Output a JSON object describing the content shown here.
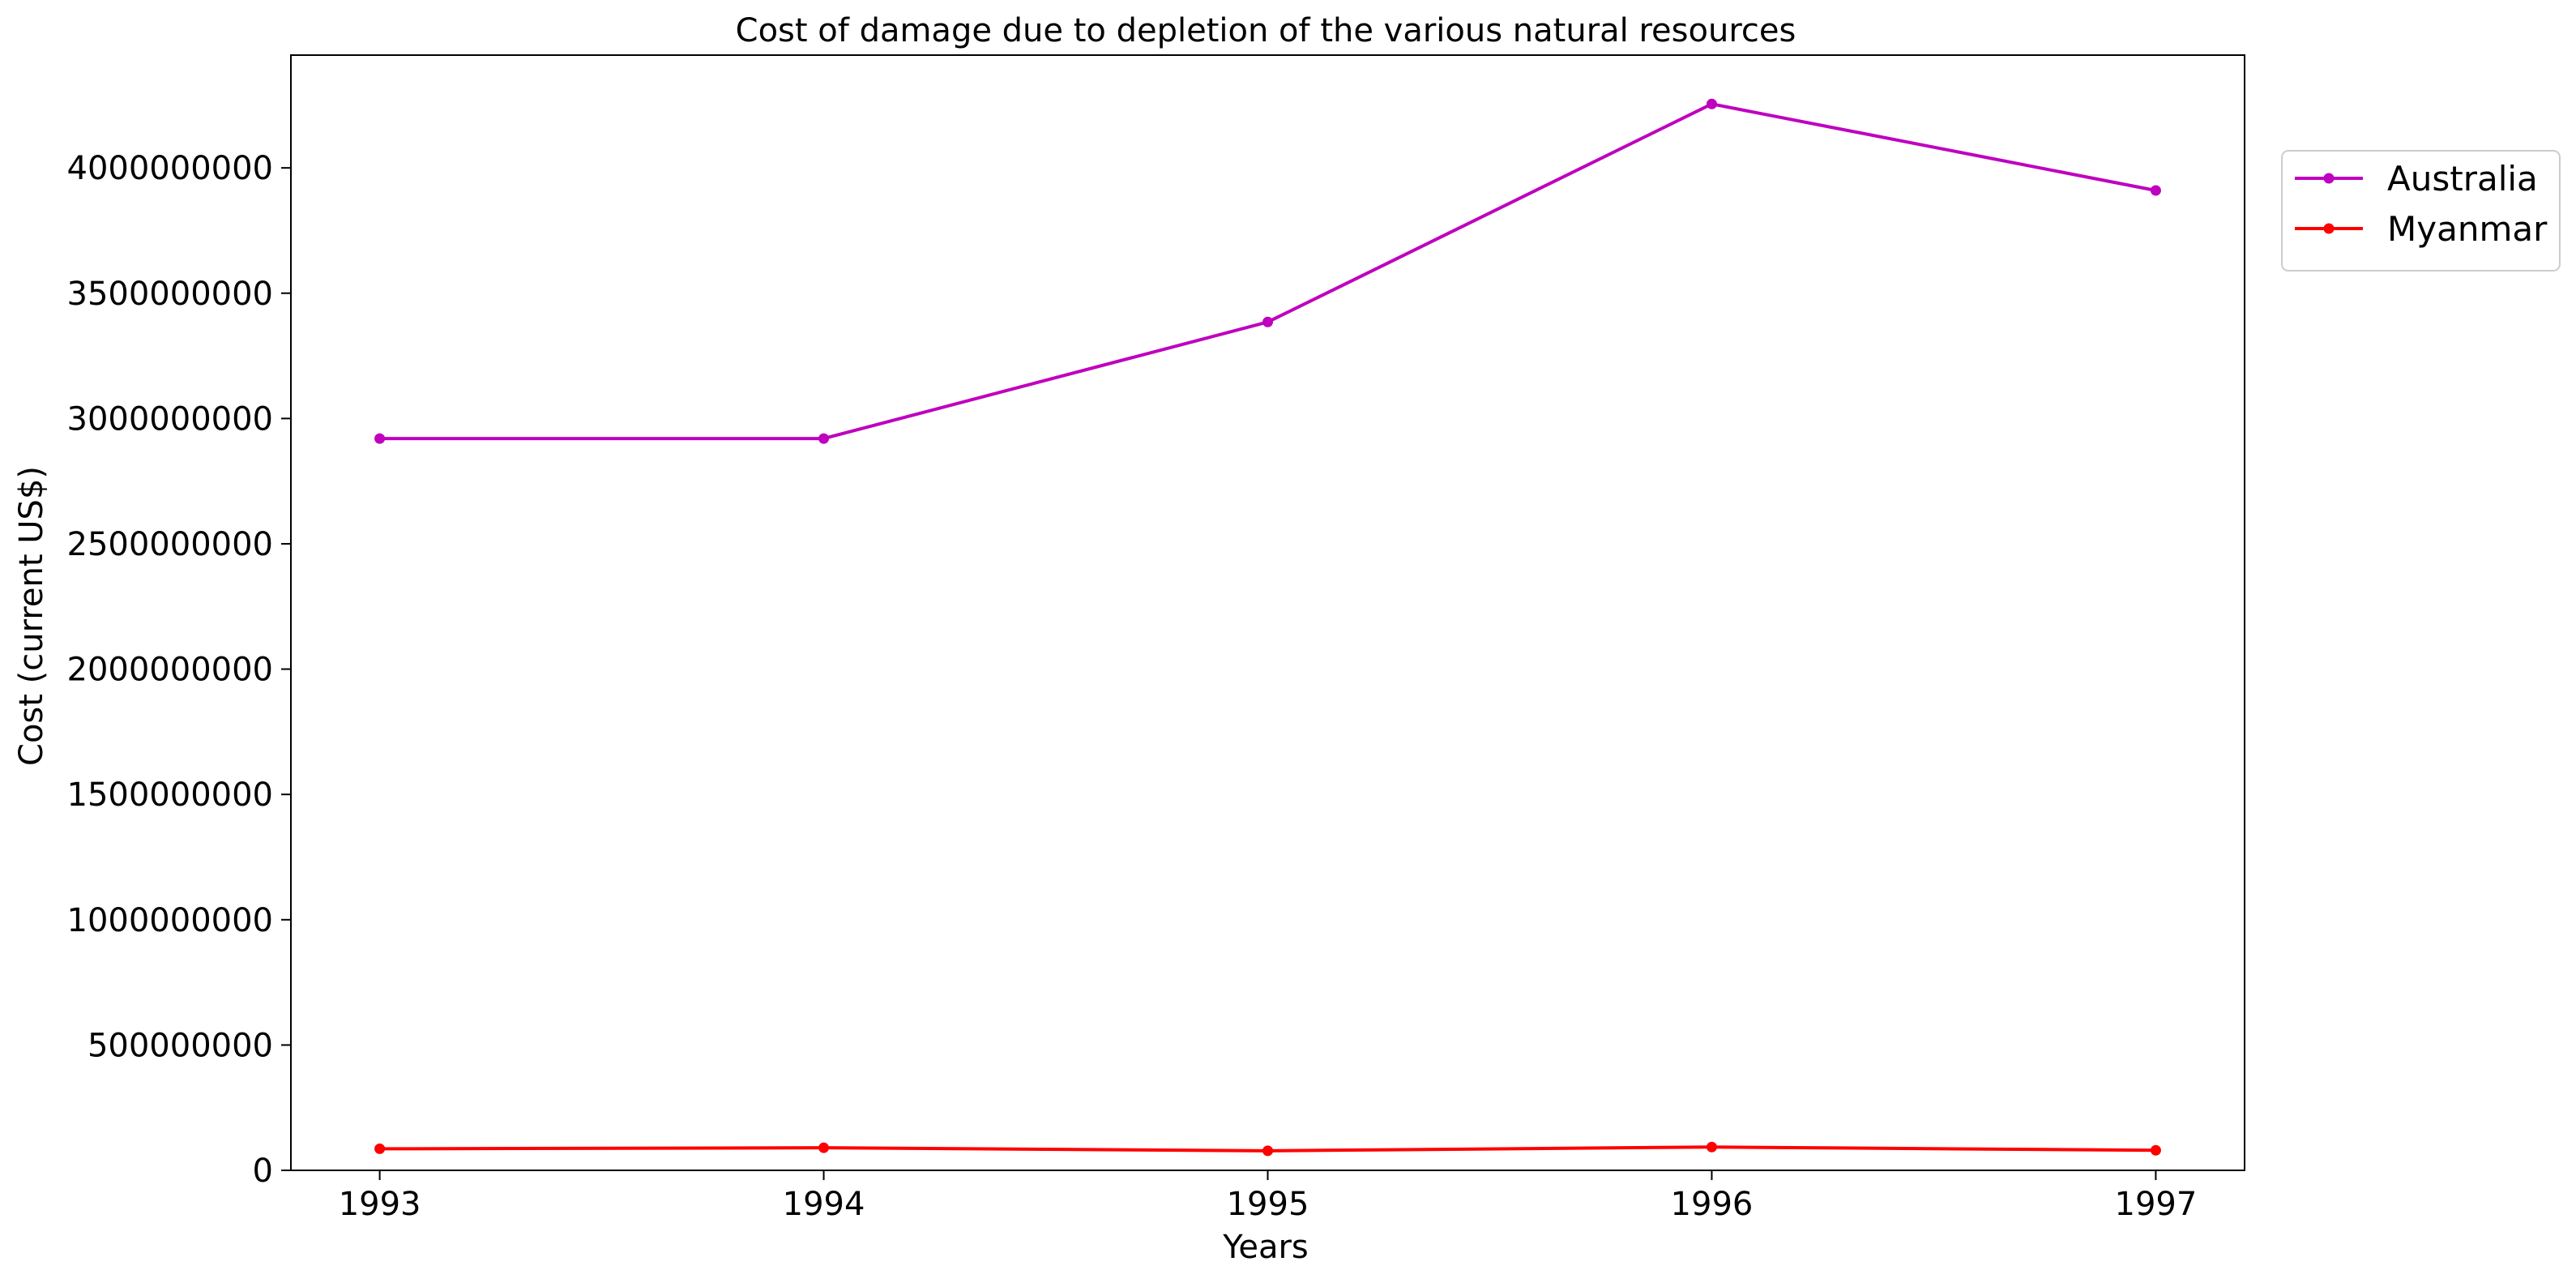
{
  "chart_data": {
    "type": "line",
    "title": "Cost of damage due to depletion of the various natural resources",
    "xlabel": "Years",
    "ylabel": "Cost (current US$)",
    "x": [
      "1993",
      "1994",
      "1995",
      "1996",
      "1997"
    ],
    "xlim": [
      1992.8,
      1997.2
    ],
    "ylim": [
      0,
      4450000000
    ],
    "yticks": [
      0,
      500000000,
      1000000000,
      1500000000,
      2000000000,
      2500000000,
      3000000000,
      3500000000,
      4000000000
    ],
    "ytick_labels": [
      "0",
      "500000000",
      "1000000000",
      "1500000000",
      "2000000000",
      "2500000000",
      "3000000000",
      "3500000000",
      "4000000000"
    ],
    "grid": false,
    "legend_position": "outside-top-right",
    "series": [
      {
        "name": "Australia",
        "color": "#bf00bf",
        "marker": "circle",
        "values": [
          2920000000,
          2920000000,
          3385000000,
          4255000000,
          3910000000
        ]
      },
      {
        "name": "Myanmar",
        "color": "#ff0000",
        "marker": "circle",
        "values": [
          86000000,
          90000000,
          78000000,
          93000000,
          80000000
        ]
      }
    ]
  }
}
